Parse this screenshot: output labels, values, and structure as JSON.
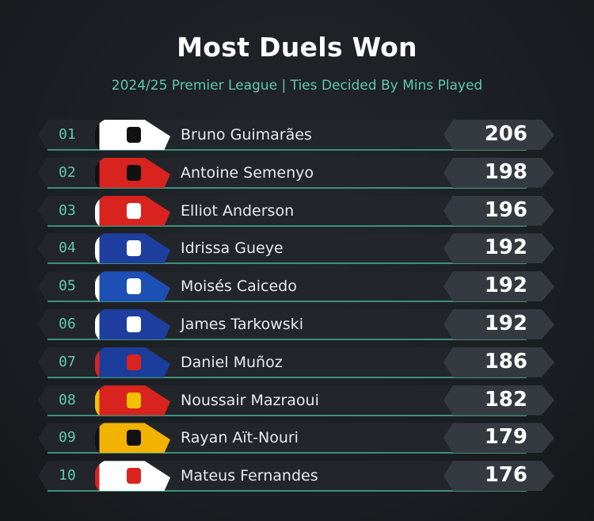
{
  "title": "Most Duels Won",
  "subtitle": "2024/25 Premier League | Ties Decided By Mins Played",
  "colors": {
    "accent": "#5fc9a8",
    "background": "#1b1e22",
    "row": "#22262b",
    "value_box": "#353a40"
  },
  "rows": [
    {
      "rank": "01",
      "name": "Bruno Guimarães",
      "value": "206",
      "badge": {
        "primary": "#ffffff",
        "secondary": "#111111"
      }
    },
    {
      "rank": "02",
      "name": "Antoine Semenyo",
      "value": "198",
      "badge": {
        "primary": "#d8231f",
        "secondary": "#111111"
      }
    },
    {
      "rank": "03",
      "name": "Elliot Anderson",
      "value": "196",
      "badge": {
        "primary": "#d8231f",
        "secondary": "#ffffff"
      }
    },
    {
      "rank": "04",
      "name": "Idrissa Gueye",
      "value": "192",
      "badge": {
        "primary": "#1e3fa0",
        "secondary": "#ffffff"
      }
    },
    {
      "rank": "05",
      "name": "Moisés Caicedo",
      "value": "192",
      "badge": {
        "primary": "#1e4fb5",
        "secondary": "#ffffff"
      }
    },
    {
      "rank": "06",
      "name": "James Tarkowski",
      "value": "192",
      "badge": {
        "primary": "#1e3fa0",
        "secondary": "#ffffff"
      }
    },
    {
      "rank": "07",
      "name": "Daniel Muñoz",
      "value": "186",
      "badge": {
        "primary": "#1b3d9c",
        "secondary": "#d8231f"
      }
    },
    {
      "rank": "08",
      "name": "Noussair Mazraoui",
      "value": "182",
      "badge": {
        "primary": "#d8231f",
        "secondary": "#f2c200"
      }
    },
    {
      "rank": "09",
      "name": "Rayan Aït-Nouri",
      "value": "179",
      "badge": {
        "primary": "#f2b200",
        "secondary": "#111111"
      }
    },
    {
      "rank": "10",
      "name": "Mateus Fernandes",
      "value": "176",
      "badge": {
        "primary": "#ffffff",
        "secondary": "#d8231f"
      }
    }
  ],
  "chart_data": {
    "type": "table",
    "title": "Most Duels Won",
    "subtitle": "2024/25 Premier League | Ties Decided By Mins Played",
    "categories": [
      "Bruno Guimarães",
      "Antoine Semenyo",
      "Elliot Anderson",
      "Idrissa Gueye",
      "Moisés Caicedo",
      "James Tarkowski",
      "Daniel Muñoz",
      "Noussair Mazraoui",
      "Rayan Aït-Nouri",
      "Mateus Fernandes"
    ],
    "values": [
      206,
      198,
      196,
      192,
      192,
      192,
      186,
      182,
      179,
      176
    ]
  }
}
